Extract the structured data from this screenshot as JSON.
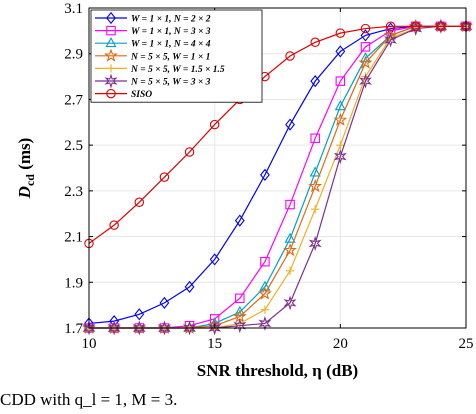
{
  "caption": "CDD with q_l = 1, M = 3.",
  "chart_data": {
    "type": "line",
    "xlabel": "SNR threshold, η (dB)",
    "ylabel": "D_cd (ms)",
    "xlim": [
      10,
      25
    ],
    "ylim": [
      1.7,
      3.1
    ],
    "xticks": [
      10,
      15,
      20,
      25
    ],
    "yticks": [
      1.7,
      1.9,
      2.1,
      2.3,
      2.5,
      2.7,
      2.9,
      3.1
    ],
    "grid": true,
    "legend_position": "top-left",
    "x": [
      10,
      11,
      12,
      13,
      14,
      15,
      16,
      17,
      18,
      19,
      20,
      21,
      22,
      23,
      24,
      25
    ],
    "series": [
      {
        "name": "W = 1 × 1, N = 2 × 2",
        "color": "#0000ff",
        "marker": "diamond",
        "values": [
          1.72,
          1.73,
          1.76,
          1.81,
          1.88,
          2.0,
          2.17,
          2.37,
          2.59,
          2.78,
          2.91,
          2.98,
          3.01,
          3.02,
          3.02,
          3.02
        ]
      },
      {
        "name": "W = 1 × 1, N = 3 × 3",
        "color": "#ff00ff",
        "marker": "square",
        "values": [
          1.7,
          1.7,
          1.7,
          1.7,
          1.71,
          1.74,
          1.83,
          1.99,
          2.24,
          2.53,
          2.78,
          2.93,
          3.0,
          3.02,
          3.02,
          3.02
        ]
      },
      {
        "name": "W = 1 × 1, N = 4 × 4",
        "color": "#00a0c8",
        "marker": "triangle",
        "values": [
          1.7,
          1.7,
          1.7,
          1.7,
          1.7,
          1.72,
          1.77,
          1.88,
          2.09,
          2.38,
          2.67,
          2.88,
          2.98,
          3.02,
          3.02,
          3.02
        ]
      },
      {
        "name": "N = 5 × 5, W = 1 × 1",
        "color": "#e06a10",
        "marker": "star",
        "values": [
          1.7,
          1.7,
          1.7,
          1.7,
          1.7,
          1.71,
          1.75,
          1.85,
          2.04,
          2.32,
          2.61,
          2.86,
          2.98,
          3.02,
          3.02,
          3.02
        ]
      },
      {
        "name": "N = 5 × 5, W = 1.5 × 1.5",
        "color": "#f0b020",
        "marker": "plus",
        "values": [
          1.7,
          1.7,
          1.7,
          1.7,
          1.7,
          1.7,
          1.72,
          1.78,
          1.95,
          2.22,
          2.5,
          2.8,
          2.97,
          3.01,
          3.02,
          3.02
        ]
      },
      {
        "name": "N = 5 × 5, W = 3 × 3",
        "color": "#7e2f8e",
        "marker": "hexagram",
        "values": [
          1.7,
          1.7,
          1.7,
          1.7,
          1.7,
          1.7,
          1.71,
          1.72,
          1.81,
          2.07,
          2.45,
          2.78,
          2.96,
          3.01,
          3.02,
          3.02
        ]
      },
      {
        "name": "SISO",
        "color": "#e00000",
        "marker": "circle",
        "values": [
          2.07,
          2.15,
          2.25,
          2.36,
          2.47,
          2.59,
          2.7,
          2.8,
          2.89,
          2.95,
          2.99,
          3.01,
          3.02,
          3.02,
          3.02,
          3.02
        ]
      }
    ]
  }
}
